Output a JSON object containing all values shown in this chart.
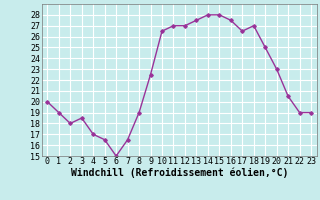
{
  "x": [
    0,
    1,
    2,
    3,
    4,
    5,
    6,
    7,
    8,
    9,
    10,
    11,
    12,
    13,
    14,
    15,
    16,
    17,
    18,
    19,
    20,
    21,
    22,
    23
  ],
  "y": [
    20.0,
    19.0,
    18.0,
    18.5,
    17.0,
    16.5,
    15.0,
    16.5,
    19.0,
    22.5,
    26.5,
    27.0,
    27.0,
    27.5,
    28.0,
    28.0,
    27.5,
    26.5,
    27.0,
    25.0,
    23.0,
    20.5,
    19.0,
    19.0
  ],
  "line_color": "#993399",
  "marker": "D",
  "marker_size": 1.8,
  "bg_color": "#c8ecec",
  "grid_color": "#ffffff",
  "xlabel": "Windchill (Refroidissement éolien,°C)",
  "xlabel_fontsize": 7.0,
  "ylim": [
    15,
    29
  ],
  "xlim": [
    -0.5,
    23.5
  ],
  "yticks": [
    15,
    16,
    17,
    18,
    19,
    20,
    21,
    22,
    23,
    24,
    25,
    26,
    27,
    28
  ],
  "xticks": [
    0,
    1,
    2,
    3,
    4,
    5,
    6,
    7,
    8,
    9,
    10,
    11,
    12,
    13,
    14,
    15,
    16,
    17,
    18,
    19,
    20,
    21,
    22,
    23
  ],
  "tick_fontsize": 6.0,
  "linewidth": 1.0
}
